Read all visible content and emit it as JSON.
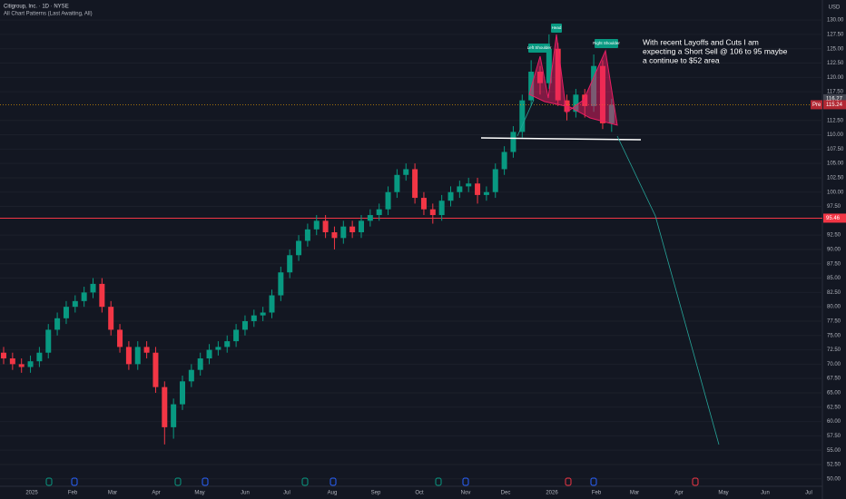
{
  "chart_data": {
    "type": "candlestick",
    "title": "Citigroup, Inc. · 1D · NYSE",
    "subtitle": "All Chart Patterns (Last Awaiting, All)",
    "currency": "USD",
    "x_labels": [
      "2025",
      "Feb",
      "Mar",
      "Apr",
      "May",
      "Jun",
      "Jul",
      "Aug",
      "Sep",
      "Oct",
      "Nov",
      "Dec",
      "2026",
      "Feb",
      "Mar",
      "Apr",
      "May",
      "Jun",
      "Jul"
    ],
    "up_color": "#089981",
    "down_color": "#f23645",
    "series": {
      "open": [
        72,
        71,
        70,
        69.5,
        70.5,
        72,
        76,
        78,
        80,
        81,
        82.5,
        84,
        80,
        76,
        73,
        70,
        73,
        72,
        66,
        59,
        63,
        67,
        69,
        71,
        72.5,
        73,
        74,
        76,
        77.5,
        78.5,
        79,
        82,
        86,
        89,
        91.5,
        93.5,
        95,
        93,
        92,
        94,
        93,
        95,
        96,
        97,
        100,
        103,
        104,
        99,
        97,
        96,
        98.5,
        100,
        101,
        101.5,
        99.5,
        100,
        104,
        107,
        110.5,
        116,
        121,
        119,
        125,
        116,
        114,
        117,
        115,
        122,
        112
      ],
      "high": [
        73,
        72,
        71,
        71.5,
        73,
        77,
        79,
        81,
        82,
        83.5,
        85,
        85,
        81,
        77,
        74,
        74,
        74,
        73,
        67,
        64,
        68,
        70,
        72,
        73.5,
        74,
        75,
        77,
        78.5,
        79.5,
        80,
        83,
        87,
        90,
        92.5,
        94.5,
        96,
        96,
        94,
        95,
        95,
        96,
        97,
        98,
        101,
        104,
        105,
        105,
        100,
        98,
        99.5,
        101,
        102,
        102.5,
        102.5,
        101,
        105,
        108,
        111.5,
        117,
        123,
        122,
        127.5,
        126,
        117,
        118,
        118,
        124,
        123,
        116.27
      ],
      "low": [
        70,
        69,
        68.5,
        68.5,
        69.5,
        71,
        75,
        77,
        79,
        80,
        81.5,
        79,
        75,
        72,
        69,
        69,
        71,
        65,
        56,
        57,
        62,
        66,
        68,
        70,
        71.5,
        72,
        73,
        75,
        76.5,
        77.5,
        78,
        81,
        85,
        88,
        90.5,
        92.5,
        92,
        90,
        91,
        92,
        92,
        94,
        95,
        96,
        99,
        102,
        98,
        96,
        94.5,
        95,
        97.5,
        99,
        100,
        98,
        98.5,
        99,
        103,
        106,
        109.5,
        115,
        117,
        118,
        115,
        112.5,
        113,
        113,
        114,
        111,
        110.5
      ],
      "close": [
        71,
        70,
        69.5,
        70.5,
        72,
        76,
        78,
        80,
        81,
        82.5,
        84,
        80,
        76,
        73,
        70,
        73,
        72,
        66,
        59,
        63,
        67,
        69,
        71,
        72.5,
        73,
        74,
        76,
        77.5,
        78.5,
        79,
        82,
        86,
        89,
        91.5,
        93.5,
        95,
        93,
        92,
        94,
        93,
        95,
        96,
        97,
        100,
        103,
        104,
        99,
        97,
        96,
        98.5,
        100,
        101,
        101.5,
        99.5,
        100,
        104,
        107,
        110.5,
        116,
        121,
        119,
        125,
        116,
        114,
        117,
        115,
        122,
        112,
        115.24
      ]
    },
    "ylim": [
      48.7,
      133.5
    ],
    "yticks": [
      {
        "value": 50,
        "label": "50.00"
      },
      {
        "value": 52.5,
        "label": "52.50"
      },
      {
        "value": 55,
        "label": "55.00"
      },
      {
        "value": 57.5,
        "label": "57.50"
      },
      {
        "value": 60,
        "label": "60.00"
      },
      {
        "value": 62.5,
        "label": "62.50"
      },
      {
        "value": 65,
        "label": "65.00"
      },
      {
        "value": 67.5,
        "label": "67.50"
      },
      {
        "value": 70,
        "label": "70.00"
      },
      {
        "value": 72.5,
        "label": "72.50"
      },
      {
        "value": 75,
        "label": "75.00"
      },
      {
        "value": 77.5,
        "label": "77.50"
      },
      {
        "value": 80,
        "label": "80.00"
      },
      {
        "value": 82.5,
        "label": "82.50"
      },
      {
        "value": 85,
        "label": "85.00"
      },
      {
        "value": 87.5,
        "label": "87.50"
      },
      {
        "value": 90,
        "label": "90.00"
      },
      {
        "value": 92.5,
        "label": "92.50"
      },
      {
        "value": 97.5,
        "label": "97.50"
      },
      {
        "value": 100,
        "label": "100.00"
      },
      {
        "value": 102.5,
        "label": "102.50"
      },
      {
        "value": 105,
        "label": "105.00"
      },
      {
        "value": 107.5,
        "label": "107.50"
      },
      {
        "value": 110,
        "label": "110.00"
      },
      {
        "value": 112.5,
        "label": "112.50"
      },
      {
        "value": 117.5,
        "label": "117.50"
      },
      {
        "value": 120,
        "label": "120.00"
      },
      {
        "value": 122.5,
        "label": "122.50"
      },
      {
        "value": 125,
        "label": "125.00"
      },
      {
        "value": 127.5,
        "label": "127.50"
      },
      {
        "value": 130,
        "label": "130.00"
      }
    ],
    "grid": true,
    "horizontal_line": {
      "value": 95.46,
      "label": "95.46",
      "color": "#f23645"
    },
    "price_tags": [
      {
        "value": 116.27,
        "label": "116.27",
        "color": "#434651"
      },
      {
        "value": 115.24,
        "label": "115.24",
        "tag": "Pre",
        "color": "#b22833"
      }
    ],
    "pattern_labels": [
      "Left Shoulder",
      "Head",
      "Right Shoulder"
    ],
    "note": [
      "With recent Layoffs and Cuts I am",
      "expecting a Short Sell @ 106 to 95 maybe",
      "a continue to $52 area"
    ]
  }
}
